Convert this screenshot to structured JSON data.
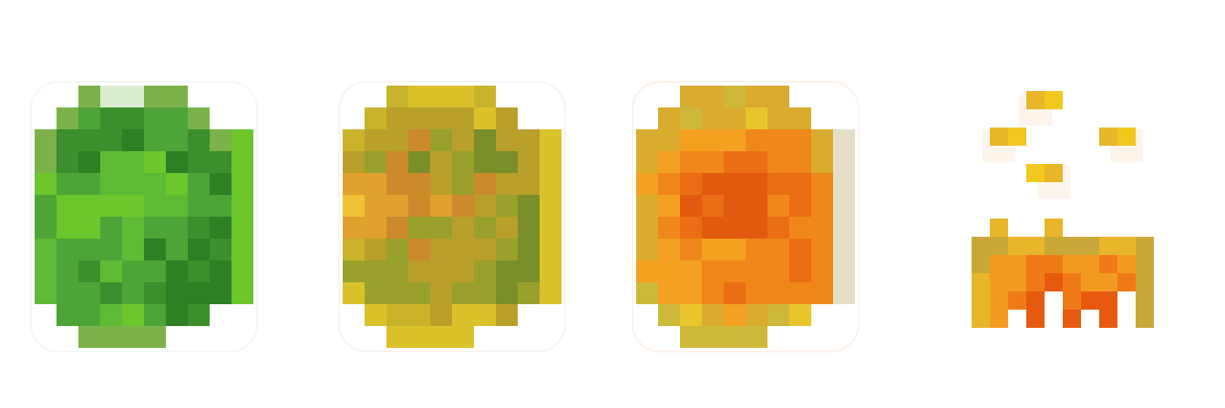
{
  "sprites": [
    {
      "id": "sprite-green",
      "name": "green-bush-sprite",
      "palette": [
        "#2f7f24",
        "#3c8f2c",
        "#4ea537",
        "#5fbb36",
        "#6cc62c",
        "#7bb34a",
        "#a9cf8f",
        "#d9ecd0"
      ],
      "cols": 10,
      "rows": 12
    },
    {
      "id": "sprite-yellow",
      "name": "yellow-bush-sprite",
      "palette": [
        "#7a8f2a",
        "#99a12c",
        "#b8a02a",
        "#c9b32b",
        "#dcc22a",
        "#e0a12e",
        "#f0c233",
        "#cc8a2a",
        "#d8d8a8",
        "#f3ddd0"
      ],
      "cols": 10,
      "rows": 12
    },
    {
      "id": "sprite-orange",
      "name": "orange-bush-sprite",
      "palette": [
        "#e25a10",
        "#ea6e14",
        "#f0871a",
        "#f4a020",
        "#d9ab2e",
        "#cdb83a",
        "#e9c52c",
        "#b8b060",
        "#e4e0c8",
        "#f6d9c6"
      ],
      "cols": 10,
      "rows": 12
    },
    {
      "id": "sprite-burning",
      "name": "burning-bush-sprite",
      "palette": [
        "#e65a10",
        "#f07a18",
        "#f39a20",
        "#e8b62a",
        "#f2c81e",
        "#c9a83a",
        "#fde6a0",
        "#fbe7d3",
        "#d7dcc0"
      ],
      "cols": 11,
      "rows": 12
    }
  ]
}
